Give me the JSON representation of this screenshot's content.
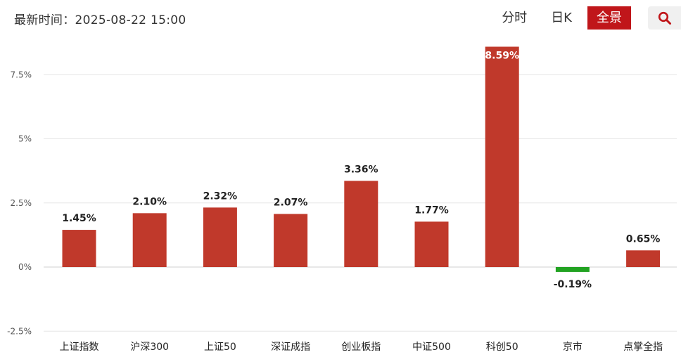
{
  "header": {
    "update_time": "最新时间：2025-08-22 15:00",
    "tabs": [
      {
        "label": "分时",
        "active": false
      },
      {
        "label": "日K",
        "active": false
      },
      {
        "label": "全景",
        "active": true
      }
    ],
    "search_icon": "search-icon"
  },
  "colors": {
    "up": "#c0392b",
    "down": "#22a322",
    "tab_active": "#c0161a"
  },
  "chart_data": {
    "type": "bar",
    "categories": [
      "上证指数",
      "沪深300",
      "上证50",
      "深证成指",
      "创业板指",
      "中证500",
      "科创50",
      "京市",
      "点掌全指"
    ],
    "values": [
      1.45,
      2.1,
      2.32,
      2.07,
      3.36,
      1.77,
      8.59,
      -0.19,
      0.65
    ],
    "value_labels": [
      "1.45%",
      "2.10%",
      "2.32%",
      "2.07%",
      "3.36%",
      "1.77%",
      "8.59%",
      "-0.19%",
      "0.65%"
    ],
    "yticks": [
      -2.5,
      0,
      2.5,
      5,
      7.5
    ],
    "ytick_labels": [
      "-2.5%",
      "0%",
      "2.5%",
      "5%",
      "7.5%"
    ],
    "ylim": [
      -2.5,
      8.6
    ],
    "grid": true,
    "legend": "none"
  }
}
